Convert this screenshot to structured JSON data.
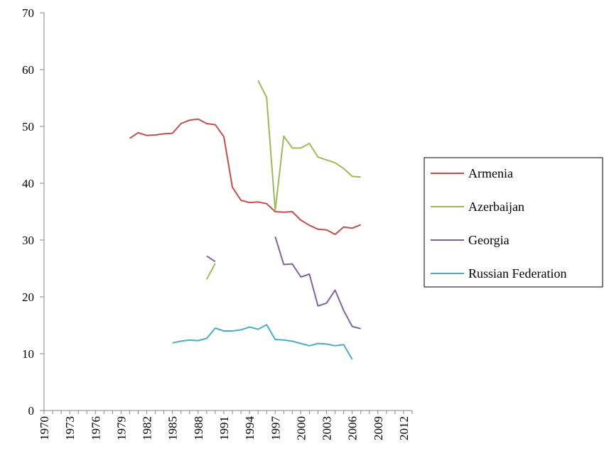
{
  "chart_data": {
    "type": "line",
    "title": "",
    "xlabel": "",
    "ylabel": "",
    "xlim": [
      1970,
      2013
    ],
    "ylim": [
      0,
      70
    ],
    "y_ticks": [
      0,
      10,
      20,
      30,
      40,
      50,
      60,
      70
    ],
    "x_tick_labels": [
      "1970",
      "1973",
      "1976",
      "1979",
      "1982",
      "1985",
      "1988",
      "1991",
      "1994",
      "1997",
      "2000",
      "2003",
      "2006",
      "2009",
      "2012"
    ],
    "grid": false,
    "legend_position": "right",
    "series": [
      {
        "name": "Armenia",
        "color": "#c0504d",
        "points": [
          [
            1980,
            47.9
          ],
          [
            1981,
            48.9
          ],
          [
            1982,
            48.4
          ],
          [
            1983,
            48.5
          ],
          [
            1984,
            48.7
          ],
          [
            1985,
            48.8
          ],
          [
            1986,
            50.5
          ],
          [
            1987,
            51.1
          ],
          [
            1988,
            51.3
          ],
          [
            1989,
            50.5
          ],
          [
            1990,
            50.3
          ],
          [
            1991,
            48.2
          ],
          [
            1992,
            39.3
          ],
          [
            1993,
            37.0
          ],
          [
            1994,
            36.6
          ],
          [
            1995,
            36.7
          ],
          [
            1996,
            36.4
          ],
          [
            1997,
            35.0
          ],
          [
            1998,
            34.9
          ],
          [
            1999,
            35.0
          ],
          [
            2000,
            33.5
          ],
          [
            2001,
            32.6
          ],
          [
            2002,
            31.9
          ],
          [
            2003,
            31.8
          ],
          [
            2004,
            31.0
          ],
          [
            2005,
            32.3
          ],
          [
            2006,
            32.1
          ],
          [
            2007,
            32.7
          ]
        ]
      },
      {
        "name": "Azerbaijan",
        "color": "#9bbb59",
        "points": [
          [
            1989,
            23.1
          ],
          [
            1990,
            25.9
          ],
          [
            1991,
            null
          ],
          [
            1995,
            58.1
          ],
          [
            1996,
            55.1
          ],
          [
            1997,
            35.2
          ],
          [
            1998,
            48.3
          ],
          [
            1999,
            46.2
          ],
          [
            2000,
            46.2
          ],
          [
            2001,
            47.0
          ],
          [
            2002,
            44.6
          ],
          [
            2003,
            44.1
          ],
          [
            2004,
            43.6
          ],
          [
            2005,
            42.6
          ],
          [
            2006,
            41.2
          ],
          [
            2007,
            41.1
          ]
        ]
      },
      {
        "name": "Georgia",
        "color": "#8064a2",
        "points": [
          [
            1989,
            27.2
          ],
          [
            1990,
            26.2
          ],
          [
            1991,
            null
          ],
          [
            1997,
            30.6
          ],
          [
            1998,
            25.7
          ],
          [
            1999,
            25.8
          ],
          [
            2000,
            23.5
          ],
          [
            2001,
            24.0
          ],
          [
            2002,
            18.4
          ],
          [
            2003,
            18.9
          ],
          [
            2004,
            21.2
          ],
          [
            2005,
            17.6
          ],
          [
            2006,
            14.8
          ],
          [
            2007,
            14.4
          ]
        ]
      },
      {
        "name": "Russian Federation",
        "color": "#4bacc6",
        "points": [
          [
            1985,
            11.9
          ],
          [
            1986,
            12.2
          ],
          [
            1987,
            12.4
          ],
          [
            1988,
            12.3
          ],
          [
            1989,
            12.7
          ],
          [
            1990,
            14.5
          ],
          [
            1991,
            14.0
          ],
          [
            1992,
            14.0
          ],
          [
            1993,
            14.2
          ],
          [
            1994,
            14.7
          ],
          [
            1995,
            14.3
          ],
          [
            1996,
            15.1
          ],
          [
            1997,
            12.5
          ],
          [
            1998,
            12.4
          ],
          [
            1999,
            12.2
          ],
          [
            2000,
            11.8
          ],
          [
            2001,
            11.4
          ],
          [
            2002,
            11.8
          ],
          [
            2003,
            11.7
          ],
          [
            2004,
            11.4
          ],
          [
            2005,
            11.6
          ],
          [
            2006,
            9.0
          ]
        ]
      }
    ]
  }
}
